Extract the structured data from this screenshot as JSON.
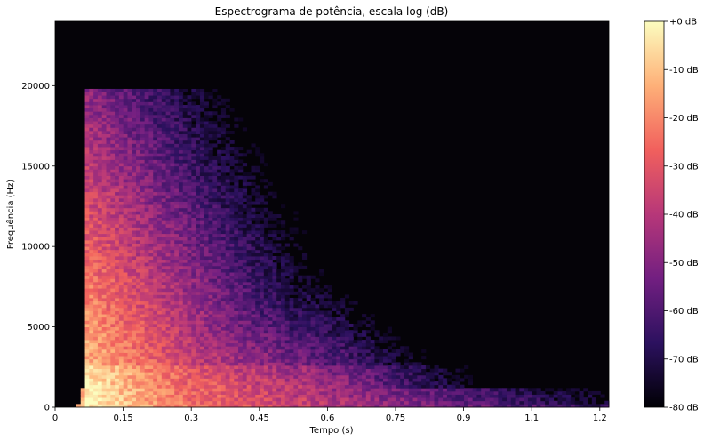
{
  "chart_data": {
    "type": "heatmap",
    "title": "Espectrograma de potência, escala log (dB)",
    "xlabel": "Tempo (s)",
    "ylabel": "Frequência (Hz)",
    "xlim": [
      0,
      1.22
    ],
    "ylim": [
      0,
      24000
    ],
    "x_ticks": [
      {
        "value": 0,
        "label": "0"
      },
      {
        "value": 0.15,
        "label": "0.15"
      },
      {
        "value": 0.3,
        "label": "0.3"
      },
      {
        "value": 0.45,
        "label": "0.45"
      },
      {
        "value": 0.6,
        "label": "0.6"
      },
      {
        "value": 0.75,
        "label": "0.75"
      },
      {
        "value": 0.9,
        "label": "0.9"
      },
      {
        "value": 1.05,
        "label": "1.1"
      },
      {
        "value": 1.2,
        "label": "1.2"
      }
    ],
    "y_ticks": [
      {
        "value": 0,
        "label": "0"
      },
      {
        "value": 5000,
        "label": "5000"
      },
      {
        "value": 10000,
        "label": "10000"
      },
      {
        "value": 15000,
        "label": "15000"
      },
      {
        "value": 20000,
        "label": "20000"
      }
    ],
    "colorbar": {
      "range": [
        -80,
        0
      ],
      "colormap": "magma",
      "ticks": [
        {
          "value": 0,
          "label": "+0 dB"
        },
        {
          "value": -10,
          "label": "-10 dB"
        },
        {
          "value": -20,
          "label": "-20 dB"
        },
        {
          "value": -30,
          "label": "-30 dB"
        },
        {
          "value": -40,
          "label": "-40 dB"
        },
        {
          "value": -50,
          "label": "-50 dB"
        },
        {
          "value": -60,
          "label": "-60 dB"
        },
        {
          "value": -70,
          "label": "-70 dB"
        },
        {
          "value": -80,
          "label": "-80 dB"
        }
      ]
    },
    "colors": {
      "background": "#050308",
      "stops": [
        "#000004",
        "#2c115f",
        "#721f81",
        "#b73779",
        "#f1605d",
        "#feb078",
        "#fcfdbf"
      ]
    },
    "onsets": [
      {
        "t": 0.07,
        "level_db": 0,
        "fmax": 19700
      },
      {
        "t": 0.11,
        "level_db": -12,
        "fmax": 19500
      },
      {
        "t": 0.145,
        "level_db": -15,
        "fmax": 18500
      },
      {
        "t": 0.185,
        "level_db": -16,
        "fmax": 17500
      },
      {
        "t": 0.22,
        "level_db": -18,
        "fmax": 16500
      },
      {
        "t": 0.275,
        "level_db": -22,
        "fmax": 15000
      },
      {
        "t": 0.32,
        "level_db": -24,
        "fmax": 14500
      },
      {
        "t": 0.355,
        "level_db": -25,
        "fmax": 13000
      },
      {
        "t": 0.385,
        "level_db": -27,
        "fmax": 12000
      },
      {
        "t": 0.425,
        "level_db": -29,
        "fmax": 11000
      },
      {
        "t": 0.465,
        "level_db": -31,
        "fmax": 10500
      },
      {
        "t": 0.5,
        "level_db": -33,
        "fmax": 9500
      },
      {
        "t": 0.545,
        "level_db": -34,
        "fmax": 9500
      },
      {
        "t": 0.585,
        "level_db": -38,
        "fmax": 9000
      },
      {
        "t": 0.63,
        "level_db": -40,
        "fmax": 9000
      },
      {
        "t": 0.67,
        "level_db": -46,
        "fmax": 4000
      },
      {
        "t": 0.72,
        "level_db": -52,
        "fmax": 2500
      },
      {
        "t": 0.77,
        "level_db": -56,
        "fmax": 1500
      },
      {
        "t": 0.82,
        "level_db": -60,
        "fmax": 1000
      }
    ]
  }
}
